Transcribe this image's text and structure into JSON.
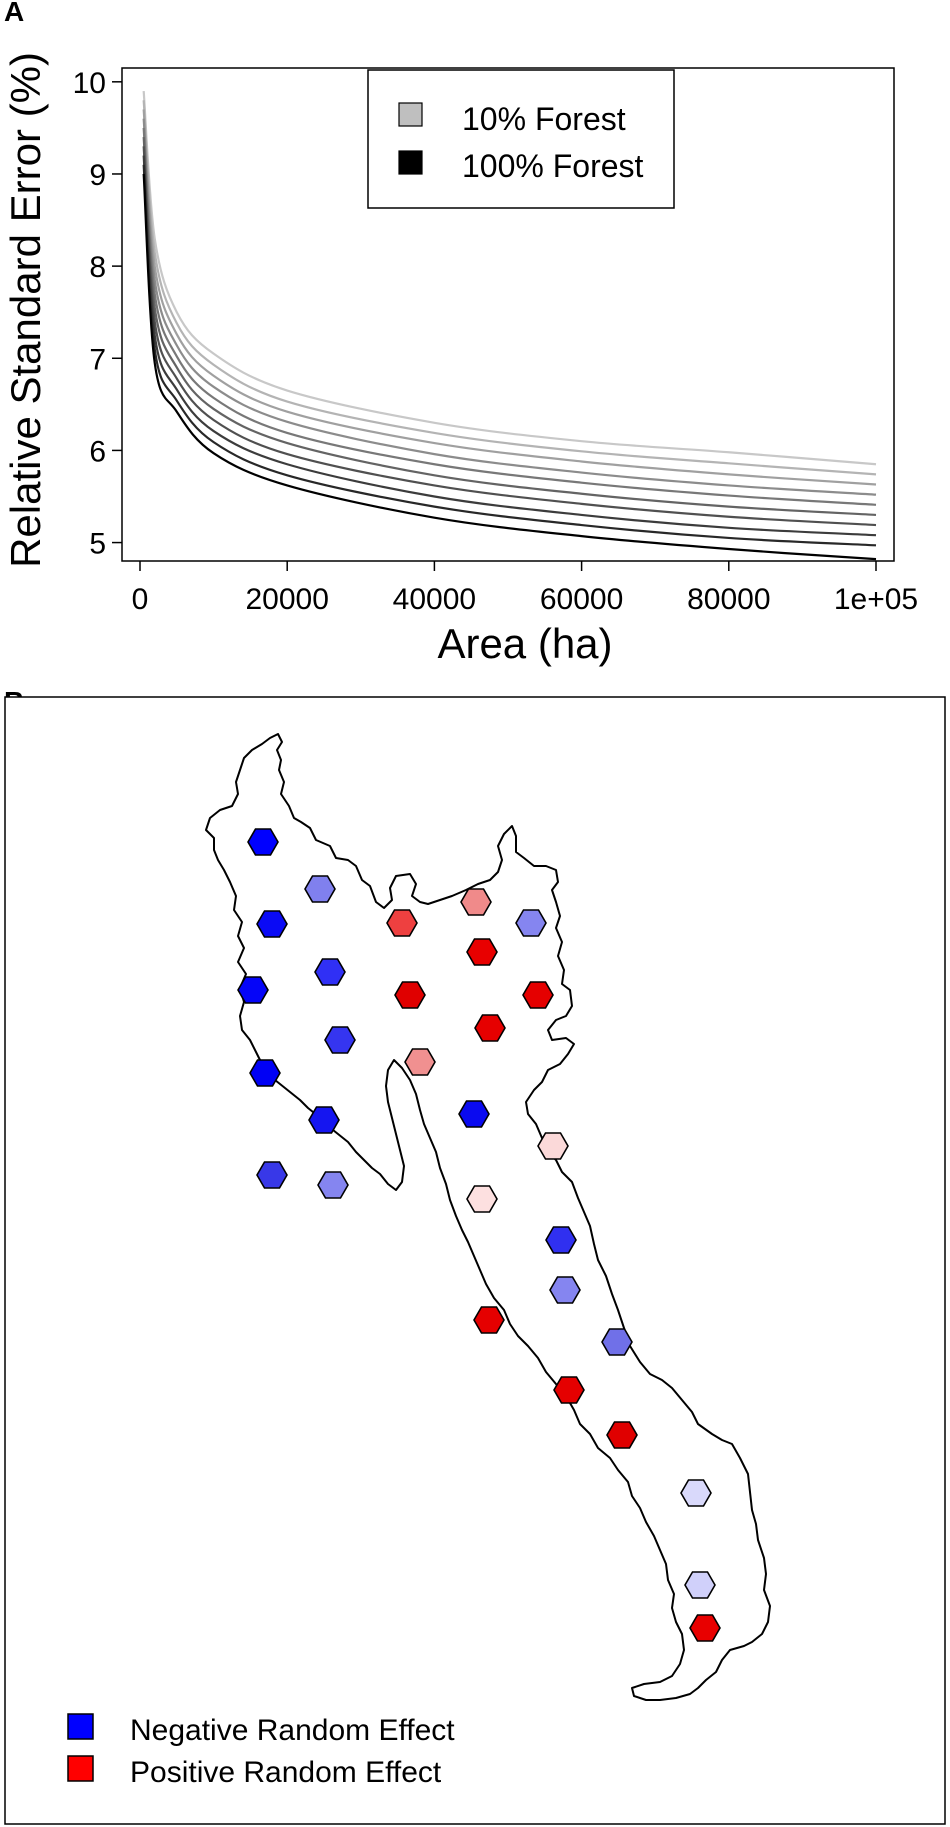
{
  "panels": {
    "a_label": "A",
    "b_label": "B"
  },
  "chart_data": [
    {
      "type": "line",
      "title": "",
      "xlabel": "Area (ha)",
      "ylabel": "Relative Standard Error (%)",
      "xlim": [
        0,
        100000
      ],
      "ylim": [
        4.8,
        10.15
      ],
      "x_ticks": [
        {
          "value": 0,
          "label": "0"
        },
        {
          "value": 20000,
          "label": "20000"
        },
        {
          "value": 40000,
          "label": "40000"
        },
        {
          "value": 60000,
          "label": "60000"
        },
        {
          "value": 80000,
          "label": "80000"
        },
        {
          "value": 100000,
          "label": "1e+05"
        }
      ],
      "y_ticks": [
        {
          "value": 5,
          "label": "5"
        },
        {
          "value": 6,
          "label": "6"
        },
        {
          "value": 7,
          "label": "7"
        },
        {
          "value": 8,
          "label": "8"
        },
        {
          "value": 9,
          "label": "9"
        },
        {
          "value": 10,
          "label": "10"
        }
      ],
      "grid": false,
      "legend_position": "top-center",
      "legend": [
        {
          "label": "10% Forest",
          "color": "#bfbfbf"
        },
        {
          "label": "100% Forest",
          "color": "#000000"
        }
      ],
      "series": [
        {
          "color": "#c8c8c8",
          "x": [
            500,
            2000,
            5000,
            10000,
            20000,
            40000,
            60000,
            80000,
            100000
          ],
          "values": [
            9.9,
            8.3,
            7.5,
            7.05,
            6.65,
            6.3,
            6.1,
            5.98,
            5.85
          ]
        },
        {
          "color": "#b4b4b4",
          "x": [
            500,
            2000,
            5000,
            10000,
            20000,
            40000,
            60000,
            80000,
            100000
          ],
          "values": [
            9.8,
            8.15,
            7.38,
            6.93,
            6.53,
            6.19,
            5.99,
            5.86,
            5.74
          ]
        },
        {
          "color": "#a0a0a0",
          "x": [
            500,
            2000,
            5000,
            10000,
            20000,
            40000,
            60000,
            80000,
            100000
          ],
          "values": [
            9.7,
            8.0,
            7.26,
            6.81,
            6.42,
            6.08,
            5.88,
            5.74,
            5.63
          ]
        },
        {
          "color": "#8c8c8c",
          "x": [
            500,
            2000,
            5000,
            10000,
            20000,
            40000,
            60000,
            80000,
            100000
          ],
          "values": [
            9.6,
            7.85,
            7.14,
            6.69,
            6.31,
            5.96,
            5.76,
            5.62,
            5.52
          ]
        },
        {
          "color": "#787878",
          "x": [
            500,
            2000,
            5000,
            10000,
            20000,
            40000,
            60000,
            80000,
            100000
          ],
          "values": [
            9.5,
            7.7,
            7.02,
            6.57,
            6.19,
            5.85,
            5.65,
            5.51,
            5.41
          ]
        },
        {
          "color": "#646464",
          "x": [
            500,
            2000,
            5000,
            10000,
            20000,
            40000,
            60000,
            80000,
            100000
          ],
          "values": [
            9.4,
            7.55,
            6.9,
            6.45,
            6.08,
            5.73,
            5.53,
            5.39,
            5.3
          ]
        },
        {
          "color": "#505050",
          "x": [
            500,
            2000,
            5000,
            10000,
            20000,
            40000,
            60000,
            80000,
            100000
          ],
          "values": [
            9.3,
            7.4,
            6.78,
            6.33,
            5.96,
            5.62,
            5.42,
            5.28,
            5.19
          ]
        },
        {
          "color": "#3c3c3c",
          "x": [
            500,
            2000,
            5000,
            10000,
            20000,
            40000,
            60000,
            80000,
            100000
          ],
          "values": [
            9.2,
            7.25,
            6.66,
            6.21,
            5.85,
            5.5,
            5.3,
            5.16,
            5.08
          ]
        },
        {
          "color": "#282828",
          "x": [
            500,
            2000,
            5000,
            10000,
            20000,
            40000,
            60000,
            80000,
            100000
          ],
          "values": [
            9.1,
            7.1,
            6.54,
            6.09,
            5.73,
            5.39,
            5.19,
            5.05,
            4.97
          ]
        },
        {
          "color": "#000000",
          "x": [
            500,
            2000,
            5000,
            10000,
            20000,
            40000,
            60000,
            80000,
            100000
          ],
          "values": [
            9.0,
            6.95,
            6.42,
            5.97,
            5.62,
            5.27,
            5.07,
            4.93,
            4.82
          ]
        }
      ]
    },
    {
      "type": "map",
      "legend_position": "bottom-left",
      "legend": [
        {
          "label": "Negative Random Effect",
          "color": "#0000ff"
        },
        {
          "label": "Positive Random Effect",
          "color": "#ff0000"
        }
      ],
      "hexagons": [
        {
          "color": "#0000ff"
        },
        {
          "color": "#8080ee"
        },
        {
          "color": "#0a0af5"
        },
        {
          "color": "#ee4040"
        },
        {
          "color": "#f08a8a"
        },
        {
          "color": "#8585f0"
        },
        {
          "color": "#3030f5"
        },
        {
          "color": "#e80000"
        },
        {
          "color": "#0505f8"
        },
        {
          "color": "#e00000"
        },
        {
          "color": "#e50000"
        },
        {
          "color": "#e60000"
        },
        {
          "color": "#3535f0"
        },
        {
          "color": "#0000f5"
        },
        {
          "color": "#f09090"
        },
        {
          "color": "#1515f0"
        },
        {
          "color": "#3838e8"
        },
        {
          "color": "#0a0af0"
        },
        {
          "color": "#fbd9d9"
        },
        {
          "color": "#8585f0"
        },
        {
          "color": "#fde0e0"
        },
        {
          "color": "#3030f0"
        },
        {
          "color": "#e50000"
        },
        {
          "color": "#8585f0"
        },
        {
          "color": "#7070e8"
        },
        {
          "color": "#e50000"
        },
        {
          "color": "#e00000"
        },
        {
          "color": "#d9d9fb"
        },
        {
          "color": "#d0d0fa"
        },
        {
          "color": "#e80000"
        }
      ]
    }
  ]
}
